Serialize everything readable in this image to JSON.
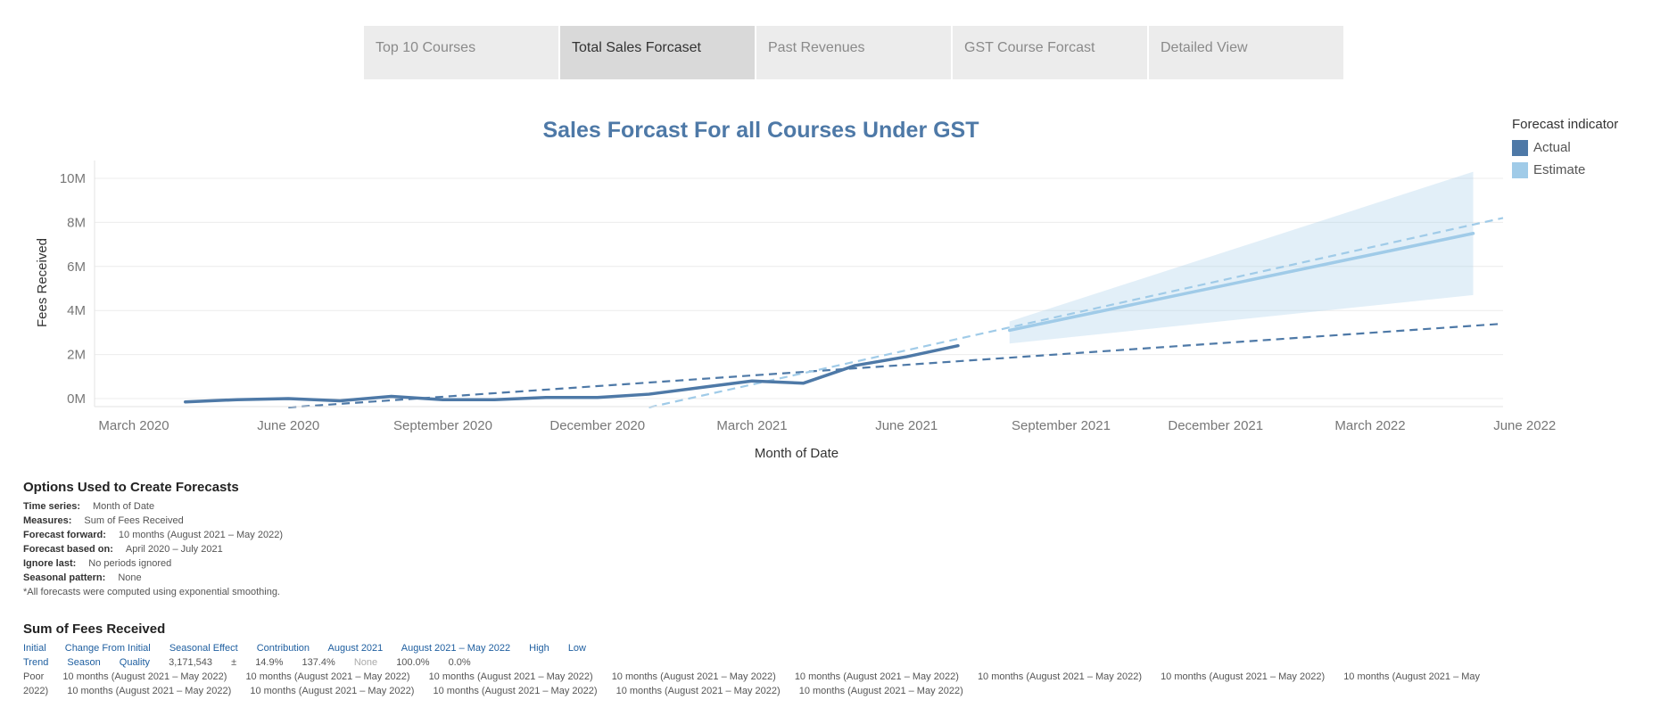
{
  "tabs": [
    {
      "label": "Top 10 Courses",
      "active": false
    },
    {
      "label": "Total Sales Forcaset",
      "active": true
    },
    {
      "label": "Past Revenues",
      "active": false
    },
    {
      "label": "GST Course Forcast",
      "active": false
    },
    {
      "label": "Detailed View",
      "active": false
    }
  ],
  "legend": {
    "title": "Forecast indicator",
    "items": [
      {
        "label": "Actual",
        "color": "#4e79a7"
      },
      {
        "label": "Estimate",
        "color": "#a0cbe8"
      }
    ]
  },
  "chart_data": {
    "type": "line",
    "title": "Sales Forcast For all Courses Under GST",
    "xlabel": "Month of Date",
    "ylabel": "Fees Received",
    "x_ticks": [
      "March 2020",
      "June 2020",
      "September 2020",
      "December 2020",
      "March 2021",
      "June 2021",
      "September 2021",
      "December 2021",
      "March 2022",
      "June 2022"
    ],
    "y_ticks": [
      "0M",
      "2M",
      "4M",
      "6M",
      "8M",
      "10M"
    ],
    "ylim": [
      -0.4,
      10.5
    ],
    "y_unit": "M",
    "grid": true,
    "legend_position": "right",
    "series": [
      {
        "name": "Actual",
        "color": "#4e79a7",
        "x": [
          "2020-04",
          "2020-05",
          "2020-06",
          "2020-07",
          "2020-08",
          "2020-09",
          "2020-10",
          "2020-11",
          "2020-12",
          "2021-01",
          "2021-02",
          "2021-03",
          "2021-04",
          "2021-05",
          "2021-06",
          "2021-07"
        ],
        "y": [
          -0.15,
          -0.05,
          0.0,
          -0.1,
          0.1,
          -0.05,
          -0.05,
          0.05,
          0.05,
          0.2,
          0.5,
          0.8,
          0.7,
          1.5,
          1.9,
          2.4
        ]
      },
      {
        "name": "Estimate",
        "color": "#a0cbe8",
        "x": [
          "2021-08",
          "2022-05"
        ],
        "y": [
          3.1,
          7.5
        ],
        "band": {
          "x": [
            "2021-08",
            "2022-05"
          ],
          "upper": [
            3.5,
            10.3
          ],
          "lower": [
            2.5,
            4.7
          ]
        }
      }
    ],
    "trend_lines": [
      {
        "name": "Actual",
        "color": "#4e79a7",
        "x": [
          "2020-06",
          "2022-06"
        ],
        "y": [
          -0.4,
          3.4
        ]
      },
      {
        "name": "Estimate",
        "color": "#a0cbe8",
        "x": [
          "2021-01",
          "2022-06"
        ],
        "y": [
          -0.4,
          8.2
        ]
      }
    ]
  },
  "options": {
    "title": "Options Used to Create Forecasts",
    "rows": [
      {
        "key": "Time series:",
        "value": "Month of Date"
      },
      {
        "key": "Measures:",
        "value": "Sum of Fees Received"
      },
      {
        "key": "Forecast forward:",
        "value": "10 months (August 2021 – May 2022)"
      },
      {
        "key": "Forecast based on:",
        "value": "April 2020 – July 2021"
      },
      {
        "key": "Ignore last:",
        "value": "No periods ignored"
      },
      {
        "key": "Seasonal pattern:",
        "value": "None"
      }
    ],
    "note": "*All forecasts were computed using exponential smoothing."
  },
  "summary": {
    "title": "Sum of Fees Received",
    "headers": [
      "Initial",
      "Change From Initial",
      "Seasonal Effect",
      "Contribution",
      "August 2021",
      "August 2021 – May 2022",
      "High",
      "Low"
    ],
    "row2_headers": [
      "Trend",
      "Season",
      "Quality"
    ],
    "row2_values": [
      "3,171,543",
      "±",
      "14.9%",
      "137.4%"
    ],
    "row2_none": "None",
    "row2_values_b": [
      "100.0%",
      "0.0%"
    ],
    "row3_label": "Poor",
    "row3_values": [
      "10 months (August 2021 – May 2022)",
      "10 months (August 2021 – May 2022)",
      "10 months (August 2021 – May 2022)",
      "10 months (August 2021 – May 2022)",
      "10 months (August 2021 – May 2022)",
      "10 months (August 2021 – May 2022)",
      "10 months (August 2021 – May 2022)",
      "10 months (August 2021 – May 2022)",
      "10 months (August 2021 – May 2022)",
      "10 months (August 2021 – May 2022)",
      "10 months (August 2021 – May 2022)",
      "10 months (August 2021 – May 2022)",
      "10 months (August 2021 – May 2022)"
    ]
  }
}
